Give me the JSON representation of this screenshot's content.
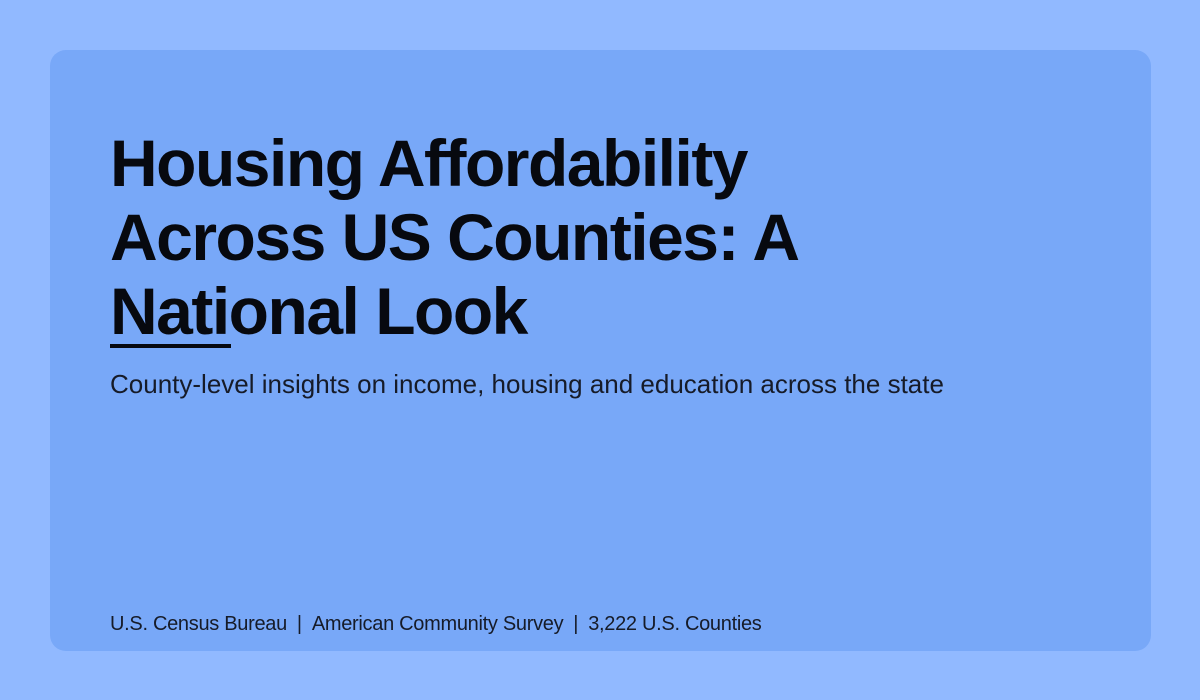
{
  "hero": {
    "title": "Housing Affordability Across US Counties: A National Look",
    "subtitle": "County-level insights on income, housing and education across the state"
  },
  "footer": {
    "source": "U.S. Census Bureau",
    "separator": "|",
    "survey": "American Community Survey",
    "coverage": "3,222 U.S. Counties"
  },
  "colors": {
    "page_background": "#91b9ff",
    "card_background": "#78a8f8",
    "text": "#07090f"
  }
}
